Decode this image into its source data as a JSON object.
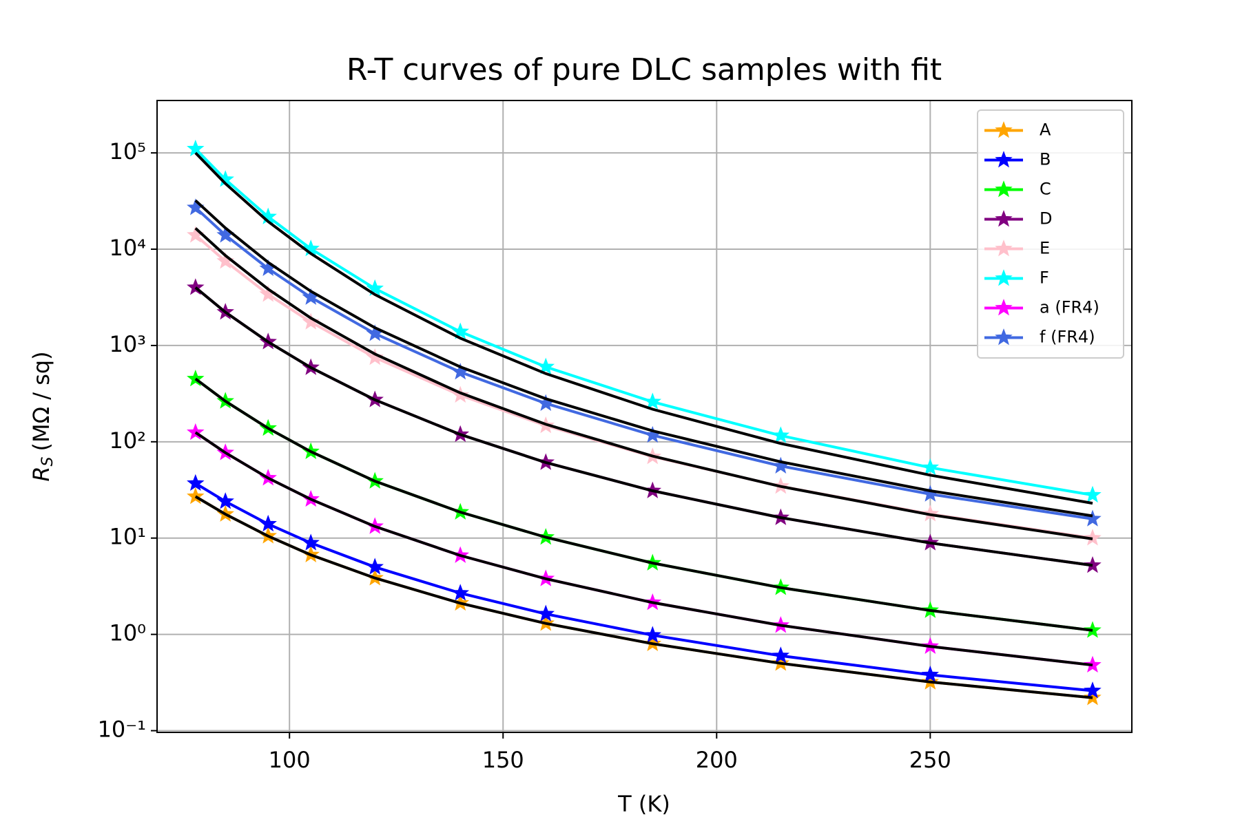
{
  "chart_data": {
    "type": "line",
    "title": "R-T curves of pure DLC samples with fit",
    "xlabel": "T (K)",
    "ylabel_symbol": "R",
    "ylabel_subscript": "S",
    "ylabel_unit": "(MΩ / sq)",
    "y_scale": "log",
    "grid": true,
    "legend": "upper right",
    "xlim": [
      69,
      297.2
    ],
    "ylim": [
      0.096,
      350000
    ],
    "xticks": [
      100,
      150,
      200,
      250
    ],
    "yticks": [
      {
        "value": 0.1,
        "label": "10⁻¹"
      },
      {
        "value": 1,
        "label": "10⁰"
      },
      {
        "value": 10,
        "label": "10¹"
      },
      {
        "value": 100,
        "label": "10²"
      },
      {
        "value": 1000,
        "label": "10³"
      },
      {
        "value": 10000,
        "label": "10⁴"
      },
      {
        "value": 100000,
        "label": "10⁵"
      }
    ],
    "x": [
      78,
      85,
      95,
      105,
      120,
      140,
      160,
      185,
      215,
      250,
      288
    ],
    "series": [
      {
        "name": "A",
        "color": "#ffa500",
        "values": [
          27,
          17.7,
          10.5,
          6.7,
          3.85,
          2.11,
          1.3,
          0.8,
          0.5,
          0.32,
          0.22
        ]
      },
      {
        "name": "B",
        "color": "#0000ff",
        "values": [
          37,
          24,
          14,
          8.9,
          5,
          2.68,
          1.63,
          0.98,
          0.6,
          0.38,
          0.26
        ]
      },
      {
        "name": "C",
        "color": "#00ff00",
        "values": [
          450,
          264,
          138,
          79,
          39,
          18.6,
          10.2,
          5.5,
          3.06,
          1.77,
          1.1
        ]
      },
      {
        "name": "D",
        "color": "#800080",
        "values": [
          4000,
          2220,
          1090,
          590,
          273,
          119,
          61,
          31,
          16.3,
          8.9,
          5.2
        ]
      },
      {
        "name": "E",
        "color": "#ffc0cb",
        "values": [
          14000,
          7500,
          3400,
          1750,
          750,
          305,
          147,
          70,
          34.5,
          17.8,
          10
        ]
      },
      {
        "name": "F",
        "color": "#00ffff",
        "values": [
          110000,
          53000,
          21700,
          10100,
          3900,
          1390,
          600,
          260,
          116,
          54,
          28
        ]
      },
      {
        "name": "a (FR4)",
        "color": "#ff00ff",
        "values": [
          125,
          77,
          42,
          25.3,
          13.2,
          6.6,
          3.78,
          2.14,
          1.24,
          0.75,
          0.48
        ]
      },
      {
        "name": "f (FR4)",
        "color": "#4169e1",
        "values": [
          27000,
          14000,
          6300,
          3160,
          1330,
          530,
          250,
          117,
          56,
          28.6,
          15.8
        ]
      }
    ],
    "fits": [
      {
        "color": "#000000",
        "values": [
          27,
          17.7,
          10.5,
          6.7,
          3.85,
          2.11,
          1.3,
          0.8,
          0.5,
          0.32,
          0.22
        ]
      },
      {
        "color": "#000000",
        "values": [
          450,
          264,
          138,
          79,
          39,
          18.6,
          10.2,
          5.5,
          3.06,
          1.77,
          1.1
        ]
      },
      {
        "color": "#000000",
        "values": [
          4000,
          2220,
          1090,
          590,
          273,
          119,
          61,
          31,
          16.3,
          8.9,
          5.2
        ]
      },
      {
        "color": "#000000",
        "values": [
          16500,
          8600,
          3850,
          1930,
          815,
          322,
          152,
          71,
          34.4,
          17.5,
          9.8
        ]
      },
      {
        "color": "#000000",
        "values": [
          100000,
          48000,
          19400,
          9000,
          3380,
          1190,
          510,
          218,
          96,
          45,
          23
        ]
      },
      {
        "color": "#000000",
        "values": [
          125,
          77,
          42,
          25.3,
          13.2,
          6.6,
          3.78,
          2.14,
          1.24,
          0.75,
          0.48
        ]
      },
      {
        "color": "#000000",
        "values": [
          32000,
          16600,
          7300,
          3660,
          1530,
          600,
          280,
          130,
          62,
          31,
          17
        ]
      }
    ]
  }
}
